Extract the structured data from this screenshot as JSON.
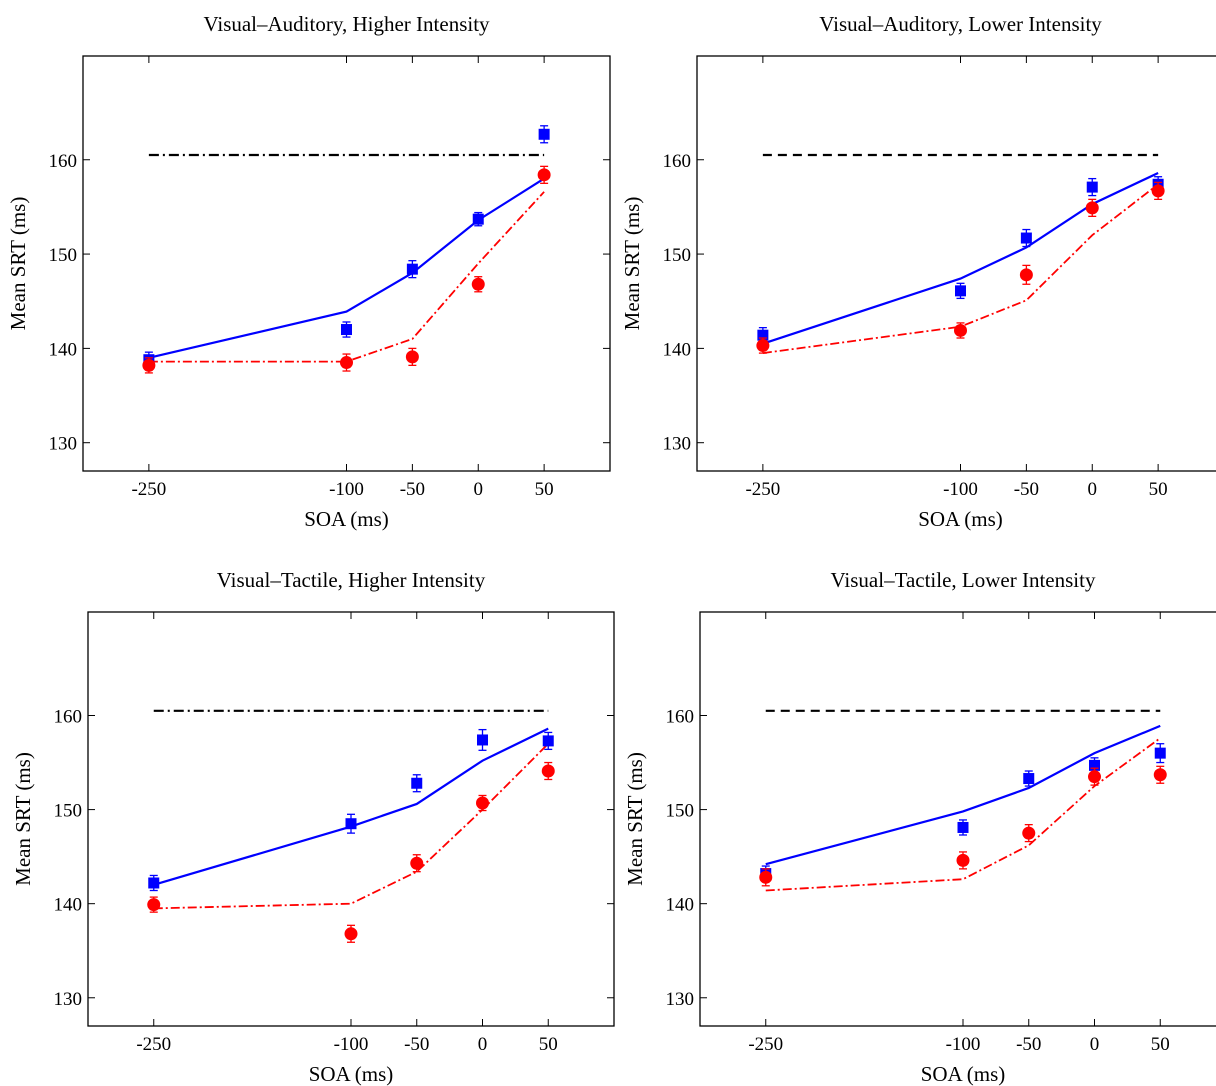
{
  "figure": {
    "background": "#ffffff",
    "colors": {
      "squares": "#0000ff",
      "circles": "#ff0000",
      "solid_line": "#0000ff",
      "dashdot_line": "#ff0000",
      "reference_line": "#000000"
    }
  },
  "chart_data": [
    {
      "type": "line",
      "title": "Visual–Auditory, Higher Intensity",
      "xlabel": "SOA (ms)",
      "ylabel": "Mean SRT (ms)",
      "x_ticks": [
        -250,
        -100,
        -50,
        0,
        50
      ],
      "y_ticks": [
        130,
        140,
        150,
        160
      ],
      "xlim": [
        -300,
        100
      ],
      "ylim": [
        127,
        171
      ],
      "grid": false,
      "reference_line": {
        "style": "dashdot",
        "y": 160.5,
        "x_range": [
          -250,
          50
        ]
      },
      "series": [
        {
          "marker": "square",
          "color": "#0000ff",
          "x": [
            -250,
            -100,
            -50,
            0,
            50
          ],
          "y": [
            138.8,
            142.0,
            148.4,
            153.7,
            162.7
          ],
          "err": [
            0.8,
            0.8,
            0.9,
            0.7,
            0.9
          ]
        },
        {
          "marker": "circle",
          "color": "#ff0000",
          "x": [
            -250,
            -100,
            -50,
            0,
            50
          ],
          "y": [
            138.2,
            138.5,
            139.1,
            146.8,
            158.4
          ],
          "err": [
            0.8,
            0.9,
            0.9,
            0.8,
            0.9
          ]
        },
        {
          "line": "solid",
          "color": "#0000ff",
          "x": [
            -250,
            -100,
            -50,
            0,
            50
          ],
          "y": [
            139.0,
            143.9,
            148.0,
            153.6,
            158.0
          ]
        },
        {
          "line": "dashdot",
          "color": "#ff0000",
          "x": [
            -250,
            -100,
            -50,
            0,
            50
          ],
          "y": [
            138.6,
            138.6,
            141.0,
            149.0,
            156.6
          ]
        }
      ]
    },
    {
      "type": "line",
      "title": "Visual–Auditory, Lower Intensity",
      "xlabel": "SOA (ms)",
      "ylabel": "Mean SRT (ms)",
      "x_ticks": [
        -250,
        -100,
        -50,
        0,
        50
      ],
      "y_ticks": [
        130,
        140,
        150,
        160
      ],
      "xlim": [
        -300,
        100
      ],
      "ylim": [
        127,
        171
      ],
      "grid": false,
      "reference_line": {
        "style": "dashed",
        "y": 160.5,
        "x_range": [
          -250,
          50
        ]
      },
      "series": [
        {
          "marker": "square",
          "color": "#0000ff",
          "x": [
            -250,
            -100,
            -50,
            0,
            50
          ],
          "y": [
            141.4,
            146.1,
            151.7,
            157.1,
            157.4
          ],
          "err": [
            0.8,
            0.8,
            0.9,
            0.9,
            0.8
          ]
        },
        {
          "marker": "circle",
          "color": "#ff0000",
          "x": [
            -250,
            -100,
            -50,
            0,
            50
          ],
          "y": [
            140.3,
            141.9,
            147.8,
            154.9,
            156.7
          ],
          "err": [
            0.8,
            0.8,
            1.0,
            0.9,
            0.9
          ]
        },
        {
          "line": "solid",
          "color": "#0000ff",
          "x": [
            -250,
            -100,
            -50,
            0,
            50
          ],
          "y": [
            140.5,
            147.4,
            150.7,
            155.3,
            158.6
          ]
        },
        {
          "line": "dashdot",
          "color": "#ff0000",
          "x": [
            -250,
            -100,
            -50,
            0,
            50
          ],
          "y": [
            139.5,
            142.3,
            145.1,
            152.0,
            157.4
          ]
        }
      ]
    },
    {
      "type": "line",
      "title": "Visual–Tactile, Higher Intensity",
      "xlabel": "SOA (ms)",
      "ylabel": "Mean SRT (ms)",
      "x_ticks": [
        -250,
        -100,
        -50,
        0,
        50
      ],
      "y_ticks": [
        130,
        140,
        150,
        160
      ],
      "xlim": [
        -300,
        100
      ],
      "ylim": [
        127,
        171
      ],
      "grid": false,
      "reference_line": {
        "style": "dashdot",
        "y": 160.5,
        "x_range": [
          -250,
          50
        ]
      },
      "series": [
        {
          "marker": "square",
          "color": "#0000ff",
          "x": [
            -250,
            -100,
            -50,
            0,
            50
          ],
          "y": [
            142.2,
            148.5,
            152.8,
            157.4,
            157.3
          ],
          "err": [
            0.8,
            1.0,
            0.9,
            1.1,
            0.9
          ]
        },
        {
          "marker": "circle",
          "color": "#ff0000",
          "x": [
            -250,
            -100,
            -50,
            0,
            50
          ],
          "y": [
            139.9,
            136.8,
            144.3,
            150.7,
            154.1
          ],
          "err": [
            0.8,
            0.9,
            0.9,
            0.8,
            0.9
          ]
        },
        {
          "line": "solid",
          "color": "#0000ff",
          "x": [
            -250,
            -100,
            -50,
            0,
            50
          ],
          "y": [
            142.0,
            148.2,
            150.6,
            155.2,
            158.6
          ]
        },
        {
          "line": "dashdot",
          "color": "#ff0000",
          "x": [
            -250,
            -100,
            -50,
            0,
            50
          ],
          "y": [
            139.5,
            140.0,
            143.4,
            150.0,
            157.0
          ]
        }
      ]
    },
    {
      "type": "line",
      "title": "Visual–Tactile, Lower Intensity",
      "xlabel": "SOA (ms)",
      "ylabel": "Mean SRT (ms)",
      "x_ticks": [
        -250,
        -100,
        -50,
        0,
        50
      ],
      "y_ticks": [
        130,
        140,
        150,
        160
      ],
      "xlim": [
        -300,
        100
      ],
      "ylim": [
        127,
        171
      ],
      "grid": false,
      "reference_line": {
        "style": "dashed",
        "y": 160.5,
        "x_range": [
          -250,
          50
        ]
      },
      "series": [
        {
          "marker": "square",
          "color": "#0000ff",
          "x": [
            -250,
            -100,
            -50,
            0,
            50
          ],
          "y": [
            143.2,
            148.1,
            153.3,
            154.7,
            156.0
          ],
          "err": [
            0.8,
            0.8,
            0.8,
            0.8,
            1.0
          ]
        },
        {
          "marker": "circle",
          "color": "#ff0000",
          "x": [
            -250,
            -100,
            -50,
            0,
            50
          ],
          "y": [
            142.8,
            144.6,
            147.5,
            153.5,
            153.7
          ],
          "err": [
            0.9,
            0.9,
            0.9,
            0.9,
            0.9
          ]
        },
        {
          "line": "solid",
          "color": "#0000ff",
          "x": [
            -250,
            -100,
            -50,
            0,
            50
          ],
          "y": [
            144.2,
            149.8,
            152.3,
            156.0,
            158.9
          ]
        },
        {
          "line": "dashdot",
          "color": "#ff0000",
          "x": [
            -250,
            -100,
            -50,
            0,
            50
          ],
          "y": [
            141.4,
            142.6,
            146.2,
            152.5,
            157.6
          ]
        }
      ]
    }
  ]
}
